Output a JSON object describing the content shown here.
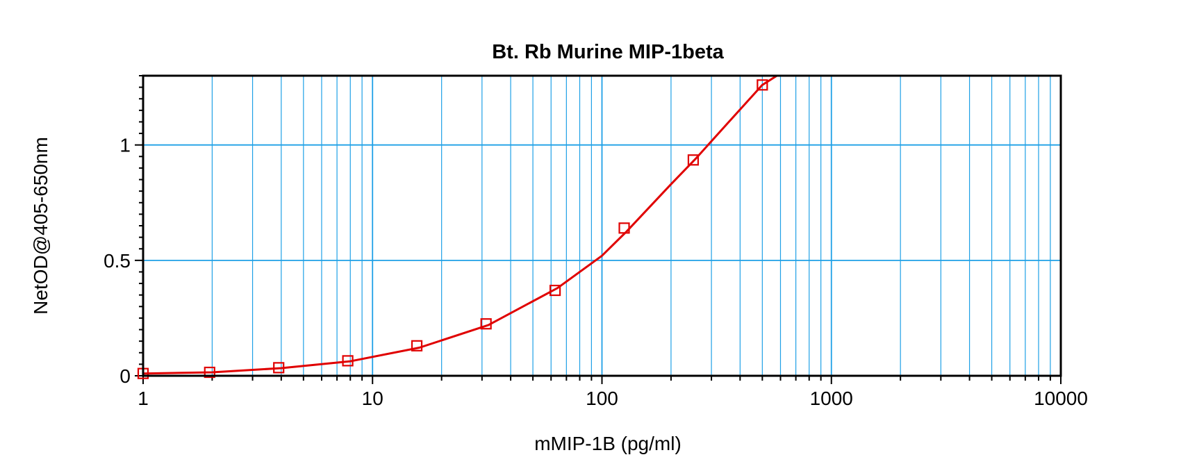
{
  "chart_data": {
    "type": "scatter",
    "title": "Bt. Rb Murine MIP-1beta",
    "xlabel": "mMIP-1B (pg/ml)",
    "ylabel": "NetOD@405-650nm",
    "xscale": "log",
    "xlim": [
      1,
      10000
    ],
    "ylim": [
      0,
      1.3
    ],
    "grid": true,
    "x_tick_labels": [
      "1",
      "10",
      "100",
      "1000",
      "10000"
    ],
    "y_tick_labels": [
      "0",
      "0.5",
      "1"
    ],
    "series": [
      {
        "marker": "square",
        "x": [
          1,
          1.95,
          3.9,
          7.8,
          15.6,
          31.25,
          62.5,
          125,
          250,
          500
        ],
        "y": [
          0.01,
          0.015,
          0.035,
          0.065,
          0.13,
          0.225,
          0.37,
          0.64,
          0.935,
          1.26
        ]
      }
    ],
    "fit_curve": {
      "x": [
        1,
        2,
        4,
        8,
        16,
        32,
        64,
        100,
        128,
        200,
        256,
        350,
        500,
        600
      ],
      "y": [
        0.01,
        0.015,
        0.033,
        0.063,
        0.122,
        0.22,
        0.38,
        0.52,
        0.625,
        0.83,
        0.94,
        1.09,
        1.26,
        1.31
      ]
    },
    "colors": {
      "series": "#e00000",
      "grid": "#1ea0e6",
      "axis": "#000000"
    }
  }
}
